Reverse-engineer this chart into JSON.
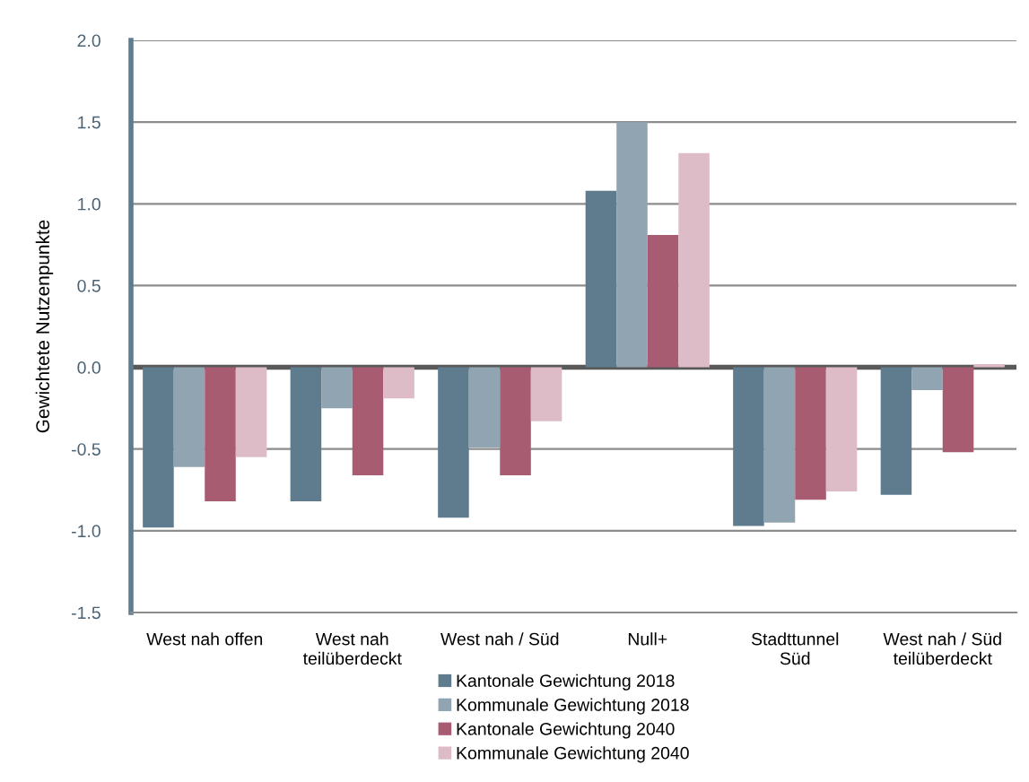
{
  "chart_data": {
    "type": "bar",
    "ylabel": "Gewichtete Nutzenpunkte",
    "categories": [
      "West nah offen",
      "West nah\nteilüberdeckt",
      "West nah / Süd",
      "Null+",
      "Stadttunnel\nSüd",
      "West nah / Süd\nteilüberdeckt"
    ],
    "series": [
      {
        "name": "Kantonale Gewichtung 2018",
        "color": "#5f7b8e",
        "values": [
          -0.98,
          -0.82,
          -0.92,
          1.08,
          -0.97,
          -0.78
        ]
      },
      {
        "name": "Kommunale Gewichtung 2018",
        "color": "#90a4b1",
        "values": [
          -0.61,
          -0.25,
          -0.49,
          1.5,
          -0.95,
          -0.14
        ]
      },
      {
        "name": "Kantonale Gewichtung 2040",
        "color": "#a85c72",
        "values": [
          -0.82,
          -0.66,
          -0.66,
          0.81,
          -0.81,
          -0.52
        ]
      },
      {
        "name": "Kommunale Gewichtung 2040",
        "color": "#debcc7",
        "values": [
          -0.55,
          -0.19,
          -0.33,
          1.31,
          -0.76,
          0.02
        ]
      }
    ],
    "ylim": [
      -1.5,
      2.0
    ],
    "yticks": [
      {
        "value": -1.5,
        "label": "-1.5"
      },
      {
        "value": -1.0,
        "label": "-1.0"
      },
      {
        "value": -0.5,
        "label": "-0.5"
      },
      {
        "value": 0,
        "label": "0.0"
      },
      {
        "value": 0.5,
        "label": "0.5"
      },
      {
        "value": 1.0,
        "label": "1.0"
      },
      {
        "value": 1.5,
        "label": "1.5"
      },
      {
        "value": 2.0,
        "label": "2.0"
      }
    ],
    "ref_lines": [
      {
        "axis": "y",
        "value": 0,
        "color": "#595959"
      }
    ],
    "grid": "y",
    "legend": "bottom"
  }
}
